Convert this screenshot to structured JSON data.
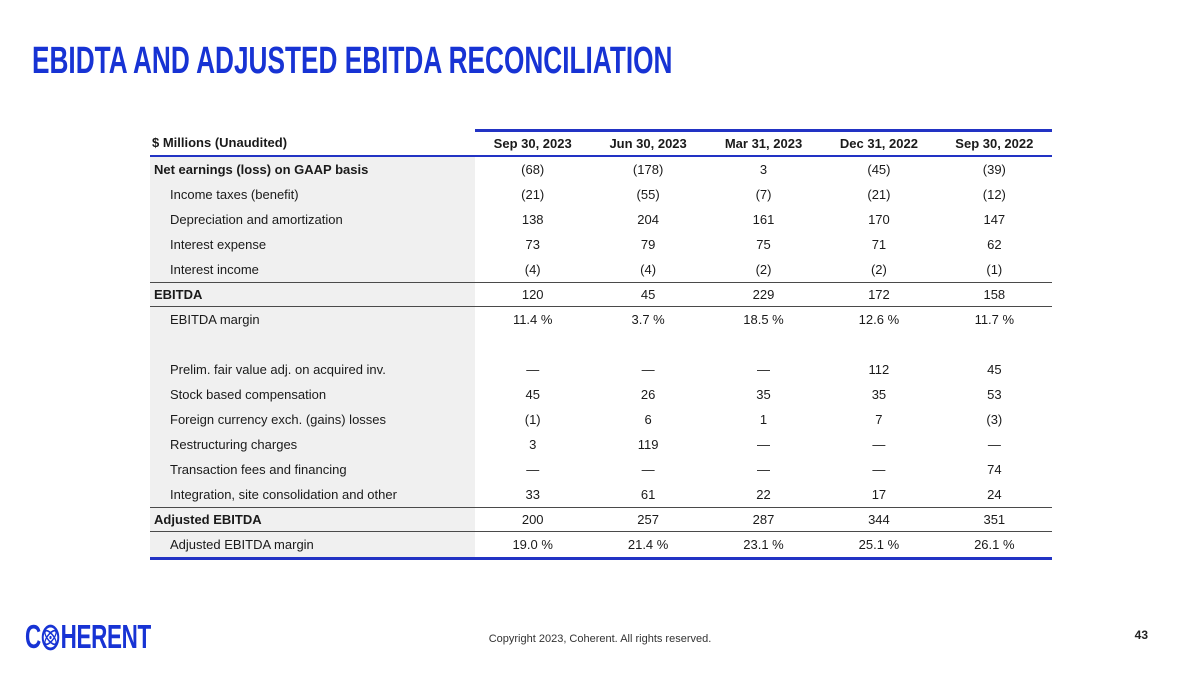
{
  "slide": {
    "title": "EBIDTA AND ADJUSTED EBITDA RECONCILIATION",
    "footer": {
      "logo_prefix": "C",
      "logo_suffix": "HERENT",
      "copyright": "Copyright 2023, Coherent. All rights reserved.",
      "page_number": "43"
    }
  },
  "colors": {
    "brand_blue": "#1733D4",
    "line_blue": "#2233C4",
    "divider_gray": "#4A4A4A",
    "label_bg": "#F0F0F0",
    "text": "#1A1A1A"
  },
  "table": {
    "unit_label": "$ Millions (Unaudited)",
    "columns": [
      "Sep 30, 2023",
      "Jun 30, 2023",
      "Mar 31, 2023",
      "Dec 31, 2022",
      "Sep 30, 2022"
    ],
    "rows": [
      {
        "kind": "gaap",
        "label": "Net earnings (loss) on GAAP basis",
        "values": [
          "(68)",
          "(178)",
          "3",
          "(45)",
          "(39)"
        ]
      },
      {
        "kind": "item",
        "label": "Income taxes (benefit)",
        "values": [
          "(21)",
          "(55)",
          "(7)",
          "(21)",
          "(12)"
        ]
      },
      {
        "kind": "item",
        "label": "Depreciation and amortization",
        "values": [
          "138",
          "204",
          "161",
          "170",
          "147"
        ]
      },
      {
        "kind": "item",
        "label": "Interest expense",
        "values": [
          "73",
          "79",
          "75",
          "71",
          "62"
        ]
      },
      {
        "kind": "item",
        "label": "Interest income",
        "values": [
          "(4)",
          "(4)",
          "(2)",
          "(2)",
          "(1)"
        ]
      },
      {
        "kind": "total",
        "label": "EBITDA",
        "values": [
          "120",
          "45",
          "229",
          "172",
          "158"
        ]
      },
      {
        "kind": "item",
        "label": "EBITDA margin",
        "values": [
          "11.4 %",
          "3.7 %",
          "18.5 %",
          "12.6 %",
          "11.7 %"
        ]
      },
      {
        "kind": "spacer",
        "label": "",
        "values": [
          "",
          "",
          "",
          "",
          ""
        ]
      },
      {
        "kind": "item",
        "label": "Prelim. fair value adj. on acquired inv.",
        "values": [
          "—",
          "—",
          "—",
          "112",
          "45"
        ]
      },
      {
        "kind": "item",
        "label": "Stock based compensation",
        "values": [
          "45",
          "26",
          "35",
          "35",
          "53"
        ]
      },
      {
        "kind": "item",
        "label": "Foreign currency exch. (gains) losses",
        "values": [
          "(1)",
          "6",
          "1",
          "7",
          "(3)"
        ]
      },
      {
        "kind": "item",
        "label": "Restructuring charges",
        "values": [
          "3",
          "119",
          "—",
          "—",
          "—"
        ]
      },
      {
        "kind": "item",
        "label": "Transaction fees and financing",
        "values": [
          "—",
          "—",
          "—",
          "—",
          "74"
        ]
      },
      {
        "kind": "item",
        "label": "Integration, site consolidation and other",
        "values": [
          "33",
          "61",
          "22",
          "17",
          "24"
        ]
      },
      {
        "kind": "total",
        "label": "Adjusted EBITDA",
        "values": [
          "200",
          "257",
          "287",
          "344",
          "351"
        ]
      },
      {
        "kind": "item",
        "label": "Adjusted EBITDA margin",
        "values": [
          "19.0 %",
          "21.4 %",
          "23.1 %",
          "25.1 %",
          "26.1 %"
        ]
      }
    ]
  }
}
